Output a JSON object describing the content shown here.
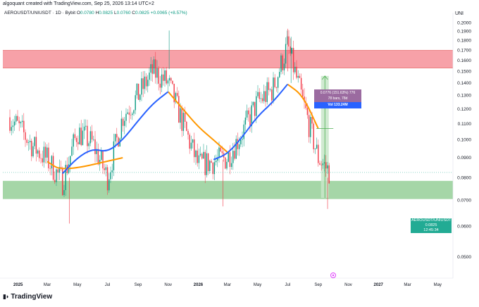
{
  "header": {
    "byline": "algoquant created with TradingView.com, Sep 25, 2026 13:14 UTC+2",
    "symbol": "AEROUSDT/UNIUSDT · 1D · Bybit",
    "ohlc": [
      {
        "key": "O",
        "value": "0.0780"
      },
      {
        "key": "H",
        "value": "0.0825"
      },
      {
        "key": "L",
        "value": "0.0760"
      },
      {
        "key": "C",
        "value": "0.0825"
      }
    ],
    "change": "+0.0065 (+8.57%)",
    "scale_currency": "UNI"
  },
  "price_tag": {
    "symbol": "AEROUSDT/UNIUSDT",
    "price": "0.0825",
    "countdown": "12:45:34"
  },
  "measure": {
    "line1": "0.0776 (151.63%) 776",
    "line2": "78 bars, 78d",
    "volume": "Vol 133.24M"
  },
  "footer": {
    "brand": "TradingView"
  },
  "colors": {
    "up": "#089981",
    "down": "#f23645",
    "sma_fast": "#2962ff",
    "sma_slow": "#ff9800",
    "resistance_zone": "#f7a1a8",
    "support_zone": "#a5d6a7",
    "measure_zone": "#c8e6c9"
  },
  "chart_data": {
    "type": "line",
    "scale": "log",
    "y_axis_side": "right",
    "grid": false,
    "x_ticks": [
      "2025",
      "Mar",
      "May",
      "Jul",
      "Sep",
      "Nov",
      "2026",
      "Mar",
      "May",
      "Jul",
      "Sep",
      "Nov",
      "2027",
      "Mar",
      "May"
    ],
    "y_ticks": [
      "0.2000",
      "0.1900",
      "0.1800",
      "0.1700",
      "0.1600",
      "0.1500",
      "0.1400",
      "0.1300",
      "0.1200",
      "0.1100",
      "0.1000",
      "0.0900",
      "0.0800",
      "0.0700",
      "0.0600",
      "0.0500"
    ],
    "ylim": [
      0.048,
      0.207
    ],
    "series": [
      {
        "name": "",
        "style": "candles",
        "x": [
          "2024-12",
          "2025-01",
          "2025-02",
          "2025-03",
          "2025-04",
          "2025-05",
          "2025-06",
          "2025-07",
          "2025-08",
          "2025-09",
          "2025-10",
          "2025-11",
          "2025-12",
          "2026-01",
          "2026-02",
          "2026-03",
          "2026-04",
          "2026-05",
          "2026-06",
          "2026-07",
          "2026-08",
          "2026-09",
          "2026-09-25"
        ],
        "y": [
          0.12,
          0.108,
          0.096,
          0.089,
          0.078,
          0.105,
          0.098,
          0.08,
          0.115,
          0.13,
          0.15,
          0.14,
          0.11,
          0.086,
          0.088,
          0.09,
          0.105,
          0.125,
          0.135,
          0.175,
          0.125,
          0.09,
          0.0825
        ]
      },
      {
        "name": "",
        "style": "line",
        "color": "#2962ff",
        "x": [
          "2025-04",
          "2025-05",
          "2025-06",
          "2025-07",
          "2025-08",
          "2025-09",
          "2025-10",
          "2025-11",
          "2026-02",
          "2026-03",
          "2026-04",
          "2026-05",
          "2026-06",
          "2026-07"
        ],
        "y": [
          0.082,
          0.09,
          0.095,
          0.093,
          0.1,
          0.112,
          0.124,
          0.133,
          0.089,
          0.092,
          0.102,
          0.115,
          0.125,
          0.139
        ]
      },
      {
        "name": "",
        "style": "line",
        "color": "#ff9800",
        "x": [
          "2025-03",
          "2025-04",
          "2025-08",
          "2025-11",
          "2025-12",
          "2026-01",
          "2026-02",
          "2026-03",
          "2026-07",
          "2026-08",
          "2026-09"
        ],
        "y": [
          0.088,
          0.083,
          0.09,
          0.133,
          0.12,
          0.108,
          0.1,
          0.093,
          0.139,
          0.13,
          0.107
        ]
      }
    ],
    "zones": [
      {
        "name": "resistance",
        "from_date": "2024-12",
        "to_date": "2026-10",
        "y": [
          0.153,
          0.17
        ]
      },
      {
        "name": "support",
        "from_date": "2024-12",
        "to_date": "2026-10",
        "y": [
          0.0705,
          0.0785
        ]
      },
      {
        "name": "measure",
        "from_date": "2026-09",
        "to_date": "2026-10",
        "y": [
          0.071,
          0.146
        ]
      }
    ]
  }
}
